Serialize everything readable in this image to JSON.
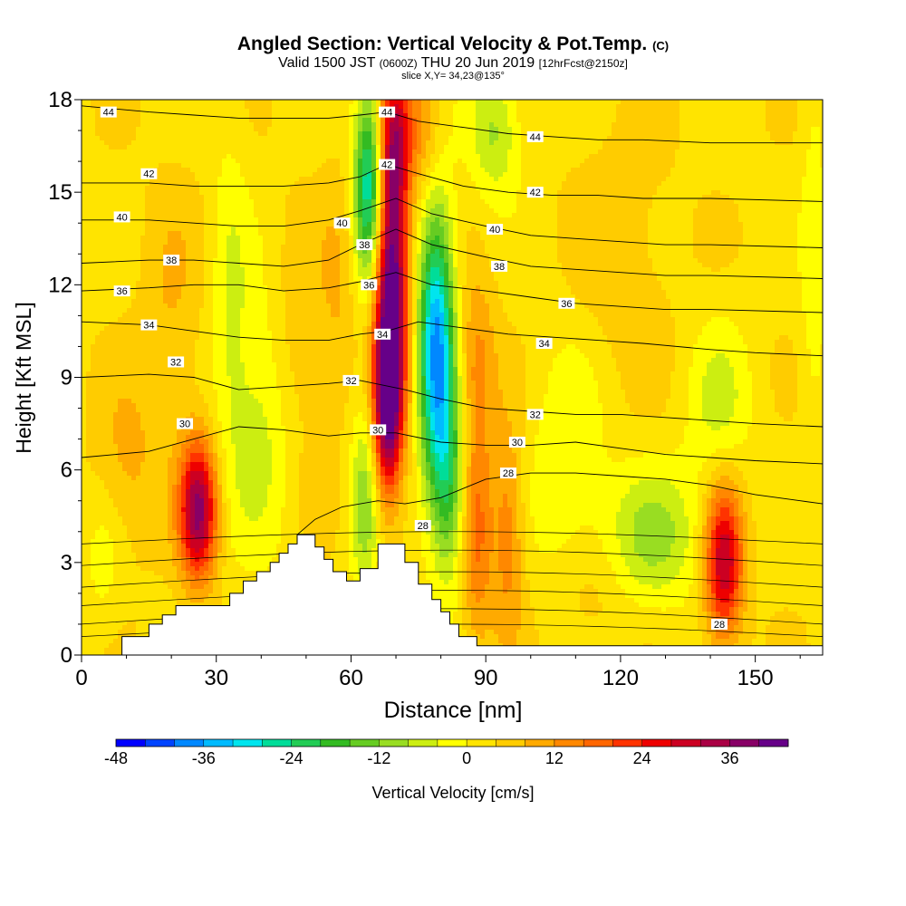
{
  "header": {
    "title": "Angled Section: Vertical Velocity & Pot.Temp.",
    "title_mark": "(C)",
    "valid_main": "Valid 1500 JST",
    "valid_utc": "(0600Z)",
    "valid_date": "THU 20 Jun 2019",
    "forecast": "[12hrFcst@2150z]",
    "slice": "slice X,Y= 34,23@135°"
  },
  "chart_data": {
    "type": "heatmap",
    "title": "Angled Section: Vertical Velocity & Pot.Temp.",
    "xlabel": "Distance [nm]",
    "ylabel": "Height [Kft MSL]",
    "xlim": [
      0,
      165
    ],
    "ylim": [
      0,
      18
    ],
    "xticks": [
      0,
      30,
      60,
      90,
      120,
      150
    ],
    "yticks": [
      0,
      3,
      6,
      9,
      12,
      15,
      18
    ],
    "colorbar": {
      "label": "Vertical Velocity [cm/s]",
      "min": -48,
      "max": 44,
      "step": 4,
      "tick_values": [
        -48,
        -36,
        -24,
        -12,
        0,
        12,
        24,
        36
      ],
      "colors": [
        "#0000ff",
        "#0044ff",
        "#0088ff",
        "#00bbff",
        "#00e5ee",
        "#00dd99",
        "#22cc55",
        "#33bb22",
        "#66cc22",
        "#99dd22",
        "#ccee11",
        "#ffff00",
        "#ffe400",
        "#ffcc00",
        "#ffaa00",
        "#ff8800",
        "#ff6600",
        "#ff3300",
        "#ee0000",
        "#cc0022",
        "#aa0044",
        "#880066",
        "#660088"
      ]
    },
    "velocity_features": [
      {
        "x": 26,
        "z": 4.7,
        "value": 34,
        "sx": 3,
        "sz": 1.6
      },
      {
        "x": 69,
        "z": 12.0,
        "value": 42,
        "sx": 2.6,
        "sz": 3.4
      },
      {
        "x": 68,
        "z": 8.0,
        "value": 28,
        "sx": 2.2,
        "sz": 2.0
      },
      {
        "x": 70,
        "z": 16.8,
        "value": 18,
        "sx": 2.4,
        "sz": 1.5
      },
      {
        "x": 143,
        "z": 3.0,
        "value": 30,
        "sx": 3,
        "sz": 1.8
      },
      {
        "x": 88,
        "z": 4.0,
        "value": 14,
        "sx": 2.5,
        "sz": 2.5
      },
      {
        "x": 95,
        "z": 4.0,
        "value": 12,
        "sx": 2.5,
        "sz": 2.5
      },
      {
        "x": 88,
        "z": 9.5,
        "value": 10,
        "sx": 3,
        "sz": 2
      },
      {
        "x": 76,
        "z": 17.0,
        "value": 10,
        "sx": 3,
        "sz": 1.5
      },
      {
        "x": 79,
        "z": 10.0,
        "value": -40,
        "sx": 2.8,
        "sz": 3.2
      },
      {
        "x": 64,
        "z": 15.2,
        "value": -32,
        "sx": 2.3,
        "sz": 2.2
      },
      {
        "x": 82,
        "z": 5.5,
        "value": -18,
        "sx": 2.6,
        "sz": 2.2
      },
      {
        "x": 63,
        "z": 5.0,
        "value": -14,
        "sx": 2.2,
        "sz": 2.2
      },
      {
        "x": 92,
        "z": 17.0,
        "value": -12,
        "sx": 4,
        "sz": 1.5
      },
      {
        "x": 127,
        "z": 3.8,
        "value": -12,
        "sx": 8,
        "sz": 1.6
      },
      {
        "x": 142,
        "z": 8.0,
        "value": -8,
        "sx": 5,
        "sz": 2
      },
      {
        "x": 40,
        "z": 7.5,
        "value": -9,
        "sx": 6,
        "sz": 3
      },
      {
        "x": 33,
        "z": 12.0,
        "value": -6,
        "sx": 3,
        "sz": 4
      },
      {
        "x": 163,
        "z": 13.0,
        "value": -6,
        "sx": 2,
        "sz": 4
      },
      {
        "x": 5,
        "z": 3.0,
        "value": -5,
        "sx": 3,
        "sz": 1.5
      },
      {
        "x": 108,
        "z": 6.0,
        "value": -7,
        "sx": 6,
        "sz": 3
      },
      {
        "x": 10,
        "z": 6.0,
        "value": 6,
        "sx": 5,
        "sz": 2
      },
      {
        "x": 20,
        "z": 11.0,
        "value": 5,
        "sx": 5,
        "sz": 3
      },
      {
        "x": 48,
        "z": 9.5,
        "value": 6,
        "sx": 4,
        "sz": 3
      },
      {
        "x": 57,
        "z": 11.5,
        "value": 5,
        "sx": 3,
        "sz": 3
      },
      {
        "x": 120,
        "z": 13.0,
        "value": 4,
        "sx": 8,
        "sz": 3
      },
      {
        "x": 113,
        "z": 2.0,
        "value": 5,
        "sx": 6,
        "sz": 1.5
      }
    ],
    "terrain_profile": [
      {
        "x": 0,
        "z": 0
      },
      {
        "x": 9,
        "z": 0
      },
      {
        "x": 9,
        "z": 0.6
      },
      {
        "x": 15,
        "z": 0.6
      },
      {
        "x": 15,
        "z": 1.0
      },
      {
        "x": 18,
        "z": 1.0
      },
      {
        "x": 18,
        "z": 1.3
      },
      {
        "x": 21,
        "z": 1.3
      },
      {
        "x": 21,
        "z": 1.6
      },
      {
        "x": 33,
        "z": 1.6
      },
      {
        "x": 33,
        "z": 2.0
      },
      {
        "x": 36,
        "z": 2.0
      },
      {
        "x": 36,
        "z": 2.4
      },
      {
        "x": 39,
        "z": 2.4
      },
      {
        "x": 39,
        "z": 2.7
      },
      {
        "x": 42,
        "z": 2.7
      },
      {
        "x": 42,
        "z": 3.0
      },
      {
        "x": 44,
        "z": 3.0
      },
      {
        "x": 44,
        "z": 3.3
      },
      {
        "x": 46,
        "z": 3.3
      },
      {
        "x": 46,
        "z": 3.6
      },
      {
        "x": 48,
        "z": 3.6
      },
      {
        "x": 48,
        "z": 3.9
      },
      {
        "x": 52,
        "z": 3.9
      },
      {
        "x": 52,
        "z": 3.5
      },
      {
        "x": 54,
        "z": 3.5
      },
      {
        "x": 54,
        "z": 3.1
      },
      {
        "x": 56,
        "z": 3.1
      },
      {
        "x": 56,
        "z": 2.7
      },
      {
        "x": 59,
        "z": 2.7
      },
      {
        "x": 59,
        "z": 2.4
      },
      {
        "x": 62,
        "z": 2.4
      },
      {
        "x": 62,
        "z": 2.8
      },
      {
        "x": 66,
        "z": 2.8
      },
      {
        "x": 66,
        "z": 3.6
      },
      {
        "x": 72,
        "z": 3.6
      },
      {
        "x": 72,
        "z": 3.0
      },
      {
        "x": 75,
        "z": 3.0
      },
      {
        "x": 75,
        "z": 2.3
      },
      {
        "x": 78,
        "z": 2.3
      },
      {
        "x": 78,
        "z": 1.8
      },
      {
        "x": 80,
        "z": 1.8
      },
      {
        "x": 80,
        "z": 1.4
      },
      {
        "x": 82,
        "z": 1.4
      },
      {
        "x": 82,
        "z": 1.0
      },
      {
        "x": 84,
        "z": 1.0
      },
      {
        "x": 84,
        "z": 0.6
      },
      {
        "x": 88,
        "z": 0.6
      },
      {
        "x": 88,
        "z": 0.3
      },
      {
        "x": 165,
        "z": 0.3
      },
      {
        "x": 165,
        "z": 0
      }
    ],
    "isentropes": [
      {
        "theta": 28,
        "points": [
          [
            48,
            3.9
          ],
          [
            52,
            4.4
          ],
          [
            58,
            4.8
          ],
          [
            66,
            5.0
          ],
          [
            72,
            4.9
          ],
          [
            80,
            5.1
          ],
          [
            90,
            5.7
          ],
          [
            100,
            5.9
          ],
          [
            110,
            5.9
          ],
          [
            120,
            5.8
          ],
          [
            130,
            5.7
          ],
          [
            140,
            5.5
          ],
          [
            150,
            5.2
          ],
          [
            160,
            5.0
          ],
          [
            165,
            4.9
          ]
        ]
      },
      {
        "theta": 30,
        "points": [
          [
            0,
            6.4
          ],
          [
            15,
            6.6
          ],
          [
            25,
            7.0
          ],
          [
            35,
            7.4
          ],
          [
            45,
            7.3
          ],
          [
            55,
            7.1
          ],
          [
            62,
            7.2
          ],
          [
            70,
            7.2
          ],
          [
            80,
            6.9
          ],
          [
            90,
            6.8
          ],
          [
            100,
            6.8
          ],
          [
            110,
            6.9
          ],
          [
            120,
            6.7
          ],
          [
            130,
            6.5
          ],
          [
            140,
            6.4
          ],
          [
            150,
            6.3
          ],
          [
            165,
            6.2
          ]
        ]
      },
      {
        "theta": 32,
        "points": [
          [
            0,
            9.0
          ],
          [
            15,
            9.1
          ],
          [
            25,
            9.0
          ],
          [
            35,
            8.6
          ],
          [
            45,
            8.7
          ],
          [
            55,
            8.8
          ],
          [
            62,
            8.9
          ],
          [
            72,
            8.6
          ],
          [
            80,
            8.3
          ],
          [
            90,
            8.0
          ],
          [
            100,
            7.9
          ],
          [
            110,
            7.8
          ],
          [
            120,
            7.8
          ],
          [
            130,
            7.7
          ],
          [
            140,
            7.6
          ],
          [
            150,
            7.5
          ],
          [
            165,
            7.4
          ]
        ]
      },
      {
        "theta": 34,
        "points": [
          [
            0,
            10.8
          ],
          [
            15,
            10.7
          ],
          [
            25,
            10.5
          ],
          [
            35,
            10.3
          ],
          [
            45,
            10.2
          ],
          [
            55,
            10.2
          ],
          [
            62,
            10.4
          ],
          [
            68,
            10.5
          ],
          [
            75,
            10.8
          ],
          [
            85,
            10.6
          ],
          [
            95,
            10.4
          ],
          [
            105,
            10.3
          ],
          [
            115,
            10.2
          ],
          [
            125,
            10.1
          ],
          [
            140,
            9.9
          ],
          [
            150,
            9.8
          ],
          [
            165,
            9.7
          ]
        ]
      },
      {
        "theta": 36,
        "points": [
          [
            0,
            11.8
          ],
          [
            15,
            11.9
          ],
          [
            25,
            12.0
          ],
          [
            35,
            12.0
          ],
          [
            45,
            11.8
          ],
          [
            55,
            11.9
          ],
          [
            62,
            12.1
          ],
          [
            70,
            12.4
          ],
          [
            78,
            12.0
          ],
          [
            90,
            11.8
          ],
          [
            100,
            11.6
          ],
          [
            110,
            11.4
          ],
          [
            120,
            11.3
          ],
          [
            130,
            11.2
          ],
          [
            140,
            11.2
          ],
          [
            165,
            11.1
          ]
        ]
      },
      {
        "theta": 38,
        "points": [
          [
            0,
            12.7
          ],
          [
            15,
            12.8
          ],
          [
            25,
            12.8
          ],
          [
            35,
            12.7
          ],
          [
            45,
            12.6
          ],
          [
            55,
            12.8
          ],
          [
            62,
            13.3
          ],
          [
            70,
            13.8
          ],
          [
            78,
            13.3
          ],
          [
            90,
            12.9
          ],
          [
            100,
            12.6
          ],
          [
            110,
            12.5
          ],
          [
            120,
            12.4
          ],
          [
            130,
            12.3
          ],
          [
            140,
            12.3
          ],
          [
            165,
            12.2
          ]
        ]
      },
      {
        "theta": 40,
        "points": [
          [
            0,
            14.1
          ],
          [
            15,
            14.1
          ],
          [
            25,
            14.0
          ],
          [
            35,
            13.9
          ],
          [
            45,
            13.9
          ],
          [
            55,
            14.1
          ],
          [
            62,
            14.4
          ],
          [
            70,
            14.8
          ],
          [
            78,
            14.3
          ],
          [
            90,
            13.9
          ],
          [
            100,
            13.6
          ],
          [
            110,
            13.5
          ],
          [
            120,
            13.4
          ],
          [
            130,
            13.3
          ],
          [
            140,
            13.3
          ],
          [
            165,
            13.2
          ]
        ]
      },
      {
        "theta": 42,
        "points": [
          [
            0,
            15.3
          ],
          [
            15,
            15.3
          ],
          [
            25,
            15.2
          ],
          [
            35,
            15.2
          ],
          [
            45,
            15.2
          ],
          [
            55,
            15.3
          ],
          [
            62,
            15.5
          ],
          [
            68,
            15.9
          ],
          [
            75,
            15.6
          ],
          [
            85,
            15.2
          ],
          [
            95,
            15.0
          ],
          [
            105,
            14.9
          ],
          [
            115,
            14.9
          ],
          [
            125,
            14.8
          ],
          [
            140,
            14.8
          ],
          [
            165,
            14.7
          ]
        ]
      },
      {
        "theta": 44,
        "points": [
          [
            0,
            17.8
          ],
          [
            15,
            17.6
          ],
          [
            25,
            17.5
          ],
          [
            35,
            17.4
          ],
          [
            45,
            17.4
          ],
          [
            55,
            17.4
          ],
          [
            62,
            17.5
          ],
          [
            68,
            17.6
          ],
          [
            75,
            17.3
          ],
          [
            85,
            17.1
          ],
          [
            95,
            16.9
          ],
          [
            105,
            16.8
          ],
          [
            115,
            16.7
          ],
          [
            125,
            16.7
          ],
          [
            140,
            16.6
          ],
          [
            165,
            16.6
          ]
        ]
      }
    ],
    "contour_labels": [
      {
        "text": "44",
        "x": 6,
        "z": 17.6
      },
      {
        "text": "44",
        "x": 68,
        "z": 17.6
      },
      {
        "text": "44",
        "x": 101,
        "z": 16.8
      },
      {
        "text": "42",
        "x": 15,
        "z": 15.6
      },
      {
        "text": "42",
        "x": 68,
        "z": 15.9
      },
      {
        "text": "42",
        "x": 101,
        "z": 15.0
      },
      {
        "text": "40",
        "x": 9,
        "z": 14.2
      },
      {
        "text": "40",
        "x": 58,
        "z": 14.0
      },
      {
        "text": "40",
        "x": 92,
        "z": 13.8
      },
      {
        "text": "38",
        "x": 20,
        "z": 12.8
      },
      {
        "text": "38",
        "x": 63,
        "z": 13.3
      },
      {
        "text": "38",
        "x": 93,
        "z": 12.6
      },
      {
        "text": "36",
        "x": 9,
        "z": 11.8
      },
      {
        "text": "36",
        "x": 64,
        "z": 12.0
      },
      {
        "text": "36",
        "x": 108,
        "z": 11.4
      },
      {
        "text": "34",
        "x": 15,
        "z": 10.7
      },
      {
        "text": "34",
        "x": 67,
        "z": 10.4
      },
      {
        "text": "34",
        "x": 103,
        "z": 10.1
      },
      {
        "text": "32",
        "x": 21,
        "z": 9.5
      },
      {
        "text": "32",
        "x": 60,
        "z": 8.9
      },
      {
        "text": "32",
        "x": 101,
        "z": 7.8
      },
      {
        "text": "30",
        "x": 23,
        "z": 7.5
      },
      {
        "text": "30",
        "x": 66,
        "z": 7.3
      },
      {
        "text": "30",
        "x": 97,
        "z": 6.9
      },
      {
        "text": "28",
        "x": 95,
        "z": 5.9
      },
      {
        "text": "28",
        "x": 76,
        "z": 4.2
      },
      {
        "text": "28",
        "x": 142,
        "z": 1.0
      }
    ]
  }
}
